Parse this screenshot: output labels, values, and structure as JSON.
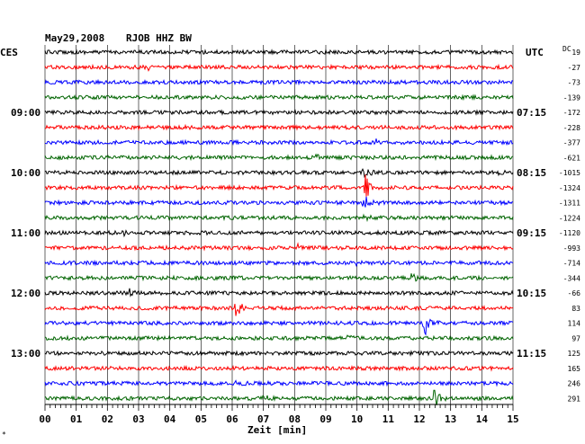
{
  "header": {
    "date": "May29,2008",
    "station": "RJOB HHZ BW"
  },
  "labels": {
    "left_zone": "CES",
    "right_zone": "UTC",
    "dc_header": "DC",
    "x_axis": "Zeit [min]",
    "corner_mark": "*"
  },
  "colors": {
    "black": "#000000",
    "red": "#ff0000",
    "blue": "#0000ff",
    "green": "#006400",
    "grid": "#000000"
  },
  "chart_data": {
    "type": "line",
    "title": "May29,2008  RJOB HHZ BW",
    "xlabel": "Zeit [min]",
    "xlim": [
      0,
      15
    ],
    "x_ticks": [
      "00",
      "01",
      "02",
      "03",
      "04",
      "05",
      "06",
      "07",
      "08",
      "09",
      "10",
      "11",
      "12",
      "13",
      "14",
      "15"
    ],
    "grid": true,
    "left_time_labels": [
      {
        "trace": 4,
        "label": "09:00"
      },
      {
        "trace": 8,
        "label": "10:00"
      },
      {
        "trace": 12,
        "label": "11:00"
      },
      {
        "trace": 16,
        "label": "12:00"
      },
      {
        "trace": 20,
        "label": "13:00"
      }
    ],
    "right_time_labels": [
      {
        "trace": 4,
        "label": "07:15"
      },
      {
        "trace": 8,
        "label": "08:15"
      },
      {
        "trace": 12,
        "label": "09:15"
      },
      {
        "trace": 16,
        "label": "10:15"
      },
      {
        "trace": 20,
        "label": "11:15"
      }
    ],
    "traces": [
      {
        "color": "black",
        "dc": "19",
        "events": []
      },
      {
        "color": "red",
        "dc": "-27",
        "events": [
          {
            "x": 3.3,
            "amp": 4
          }
        ]
      },
      {
        "color": "blue",
        "dc": "-73",
        "events": []
      },
      {
        "color": "green",
        "dc": "-139",
        "events": []
      },
      {
        "color": "black",
        "dc": "-172",
        "events": [
          {
            "x": 7.0,
            "amp": 3
          }
        ]
      },
      {
        "color": "red",
        "dc": "-228",
        "events": [
          {
            "x": 4.4,
            "amp": 3
          }
        ]
      },
      {
        "color": "blue",
        "dc": "-377",
        "events": [
          {
            "x": 10.6,
            "amp": 3
          }
        ]
      },
      {
        "color": "green",
        "dc": "-621",
        "events": [
          {
            "x": 8.7,
            "amp": 5
          }
        ]
      },
      {
        "color": "black",
        "dc": "-1015",
        "events": [
          {
            "x": 10.2,
            "amp": 8
          },
          {
            "x": 14.5,
            "amp": 4
          }
        ]
      },
      {
        "color": "red",
        "dc": "-1324",
        "events": [
          {
            "x": 10.25,
            "amp": 18
          }
        ]
      },
      {
        "color": "blue",
        "dc": "-1311",
        "events": [
          {
            "x": 10.2,
            "amp": 10
          }
        ]
      },
      {
        "color": "green",
        "dc": "-1224",
        "events": [
          {
            "x": 10.2,
            "amp": 4
          }
        ]
      },
      {
        "color": "black",
        "dc": "-1120",
        "events": [
          {
            "x": 2.5,
            "amp": 4
          }
        ]
      },
      {
        "color": "red",
        "dc": "-993",
        "events": [
          {
            "x": 8.1,
            "amp": 4
          }
        ]
      },
      {
        "color": "blue",
        "dc": "-714",
        "events": [
          {
            "x": 9.9,
            "amp": 3
          }
        ]
      },
      {
        "color": "green",
        "dc": "-344",
        "events": [
          {
            "x": 11.7,
            "amp": 6
          }
        ]
      },
      {
        "color": "black",
        "dc": "-66",
        "events": [
          {
            "x": 2.7,
            "amp": 5
          }
        ]
      },
      {
        "color": "red",
        "dc": "83",
        "events": [
          {
            "x": 6.1,
            "amp": 14
          }
        ]
      },
      {
        "color": "blue",
        "dc": "114",
        "events": [
          {
            "x": 12.15,
            "amp": 15
          }
        ]
      },
      {
        "color": "green",
        "dc": "97",
        "events": [
          {
            "x": 9.7,
            "amp": 4
          }
        ]
      },
      {
        "color": "black",
        "dc": "125",
        "events": []
      },
      {
        "color": "red",
        "dc": "165",
        "events": []
      },
      {
        "color": "blue",
        "dc": "246",
        "events": [
          {
            "x": 6.1,
            "amp": 3
          }
        ]
      },
      {
        "color": "green",
        "dc": "291",
        "events": [
          {
            "x": 7.0,
            "amp": 5
          },
          {
            "x": 12.45,
            "amp": 16
          }
        ]
      }
    ]
  }
}
